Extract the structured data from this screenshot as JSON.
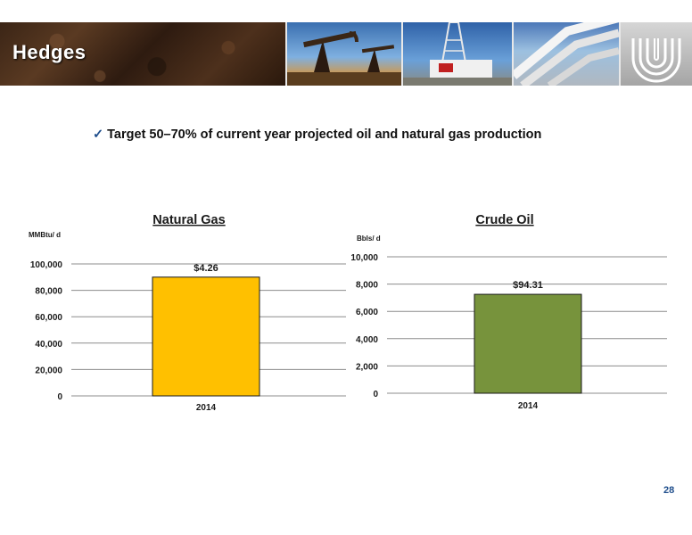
{
  "header": {
    "title": "Hedges"
  },
  "bullet": {
    "check": "✓",
    "text": "Target 50–70%  of current year projected oil and natural gas production"
  },
  "page_number": "28",
  "colors": {
    "gas_bar": "#FFC000",
    "oil_bar": "#77933C",
    "grid": "#8c8c8c",
    "page_number": "#1F4E8C"
  },
  "chart_data": [
    {
      "type": "bar",
      "title": "Natural Gas",
      "ylabel": "MMBtu/ d",
      "categories": [
        "2014"
      ],
      "values": [
        90000
      ],
      "data_labels": [
        "$4.26"
      ],
      "ylim": [
        0,
        100000
      ],
      "yticks": [
        0,
        20000,
        40000,
        60000,
        80000,
        100000
      ],
      "ytick_labels": [
        "0",
        "20,000",
        "40,000",
        "60,000",
        "80,000",
        "100,000"
      ],
      "grid": true,
      "color": "#FFC000"
    },
    {
      "type": "bar",
      "title": "Crude Oil",
      "ylabel": "Bbls/ d",
      "categories": [
        "2014"
      ],
      "values": [
        7250
      ],
      "data_labels": [
        "$94.31"
      ],
      "ylim": [
        0,
        10000
      ],
      "yticks": [
        0,
        2000,
        4000,
        6000,
        8000,
        10000
      ],
      "ytick_labels": [
        "0",
        "2,000",
        "4,000",
        "6,000",
        "8,000",
        "10,000"
      ],
      "grid": true,
      "color": "#77933C"
    }
  ]
}
